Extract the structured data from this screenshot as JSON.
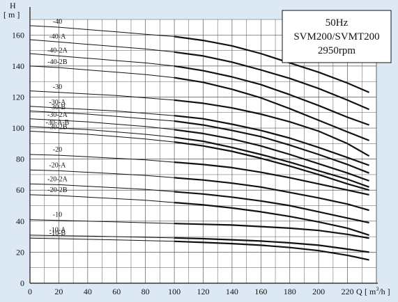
{
  "chart_data": {
    "type": "line",
    "ylabel": "H",
    "yunit": "[ m ]",
    "xlabel": "Q",
    "xunit_parts": [
      "[ m",
      "3",
      "/h ]"
    ],
    "xlim": [
      0,
      240
    ],
    "ylim": [
      0,
      170
    ],
    "xticks": [
      0,
      20,
      40,
      60,
      80,
      100,
      120,
      140,
      160,
      180,
      200,
      220
    ],
    "yticks": [
      0,
      20,
      40,
      60,
      80,
      100,
      120,
      140,
      160
    ],
    "grid": true,
    "info": [
      "50Hz",
      "SVM200/SVMT200",
      "2950rpm"
    ],
    "series": [
      {
        "name": "-40",
        "x": [
          0,
          20,
          40,
          60,
          80,
          100,
          120,
          140,
          160,
          180,
          200,
          220,
          235
        ],
        "y": [
          166,
          165,
          163.5,
          162,
          160.5,
          159,
          156.5,
          153,
          148,
          142,
          136,
          129,
          123
        ]
      },
      {
        "name": "-40-A",
        "x": [
          0,
          20,
          40,
          60,
          80,
          100,
          120,
          140,
          160,
          180,
          200,
          220,
          235
        ],
        "y": [
          157,
          155.5,
          154,
          152.5,
          151,
          149,
          146.5,
          142.5,
          137.5,
          132,
          125.5,
          118,
          112
        ]
      },
      {
        "name": "-40-2A",
        "x": [
          0,
          20,
          40,
          60,
          80,
          100,
          120,
          140,
          160,
          180,
          200,
          220,
          235
        ],
        "y": [
          148,
          146.5,
          145,
          143.5,
          142,
          140,
          137,
          133,
          128,
          121.5,
          114.5,
          107,
          102
        ]
      },
      {
        "name": "-40-2B",
        "x": [
          0,
          20,
          40,
          60,
          80,
          100,
          120,
          140,
          160,
          180,
          200,
          220,
          235
        ],
        "y": [
          140,
          139,
          137.5,
          136,
          134.5,
          132.5,
          129.5,
          125,
          119.5,
          112.5,
          105,
          97.5,
          92
        ]
      },
      {
        "name": "-30",
        "x": [
          0,
          20,
          40,
          60,
          80,
          100,
          120,
          140,
          160,
          180,
          200,
          220,
          235
        ],
        "y": [
          124,
          123,
          122,
          121,
          119.5,
          118,
          116,
          113,
          109,
          104,
          98,
          90,
          82
        ]
      },
      {
        "name": "-30-A",
        "x": [
          0,
          20,
          40,
          60,
          80,
          100,
          120,
          140,
          160,
          180,
          200,
          220,
          235
        ],
        "y": [
          114,
          113,
          112,
          111,
          109.5,
          108,
          106,
          102.5,
          98.5,
          93.5,
          87.5,
          81,
          76
        ]
      },
      {
        "name": "-30-B",
        "x": [
          0,
          20,
          40,
          60,
          80,
          100,
          120,
          140,
          160,
          180,
          200,
          220,
          235
        ],
        "y": [
          111,
          110,
          109,
          107.5,
          106,
          104.5,
          102,
          98.5,
          94.5,
          89,
          83,
          76.5,
          71
        ]
      },
      {
        "name": "-30-2A",
        "x": [
          0,
          20,
          40,
          60,
          80,
          100,
          120,
          140,
          160,
          180,
          200,
          220,
          235
        ],
        "y": [
          106,
          105,
          104,
          102.5,
          101,
          99,
          96.5,
          93,
          88.5,
          83,
          77,
          71,
          66
        ]
      },
      {
        "name": "-30-A-B",
        "x": [
          0,
          20,
          40,
          60,
          80,
          100,
          120,
          140,
          160,
          180,
          200,
          220,
          235
        ],
        "y": [
          101,
          100,
          99,
          97.5,
          96,
          94,
          91.5,
          87.5,
          83,
          78,
          72.5,
          67,
          62
        ]
      },
      {
        "name": "-30-2B",
        "x": [
          0,
          20,
          40,
          60,
          80,
          100,
          120,
          140,
          160,
          180,
          200,
          220,
          235
        ],
        "y": [
          98,
          97,
          96,
          94.5,
          93,
          91,
          88.5,
          85,
          80.5,
          75.5,
          70,
          64,
          60
        ]
      },
      {
        "name": "-20",
        "x": [
          0,
          20,
          40,
          60,
          80,
          100,
          120,
          140,
          160,
          180,
          200,
          220,
          235
        ],
        "y": [
          83,
          82.5,
          81.5,
          80.5,
          79.5,
          78,
          76.5,
          74.5,
          71.5,
          68,
          64,
          60,
          57
        ]
      },
      {
        "name": "-20-A",
        "x": [
          0,
          20,
          40,
          60,
          80,
          100,
          120,
          140,
          160,
          180,
          200,
          220,
          235
        ],
        "y": [
          73,
          72.5,
          71.5,
          70.5,
          69.5,
          68,
          66.5,
          64.5,
          62,
          58.5,
          55,
          51,
          47
        ]
      },
      {
        "name": "-20-2A",
        "x": [
          0,
          20,
          40,
          60,
          80,
          100,
          120,
          140,
          160,
          180,
          200,
          220,
          235
        ],
        "y": [
          64,
          63.5,
          62.5,
          61.5,
          60.5,
          59,
          57.5,
          55.5,
          53,
          50,
          46,
          42,
          39
        ]
      },
      {
        "name": "-20-2B",
        "x": [
          0,
          20,
          40,
          60,
          80,
          100,
          120,
          140,
          160,
          180,
          200,
          220,
          235
        ],
        "y": [
          57,
          56.5,
          55.5,
          54.5,
          53.5,
          52,
          50.5,
          48.5,
          46,
          43,
          39.5,
          35.5,
          31
        ]
      },
      {
        "name": "-10",
        "x": [
          0,
          20,
          40,
          60,
          80,
          100,
          120,
          140,
          160,
          180,
          200,
          220,
          235
        ],
        "y": [
          41,
          40.5,
          40,
          39.5,
          39,
          38.5,
          38,
          37.5,
          36.5,
          35.5,
          34,
          31.5,
          29
        ]
      },
      {
        "name": "-10-A",
        "x": [
          0,
          20,
          40,
          60,
          80,
          100,
          120,
          140,
          160,
          180,
          200,
          220,
          235
        ],
        "y": [
          31,
          30.7,
          30.4,
          30,
          29.6,
          29.2,
          28.7,
          28,
          27.2,
          26,
          24.5,
          22,
          20
        ]
      },
      {
        "name": "-10-B",
        "x": [
          0,
          20,
          40,
          60,
          80,
          100,
          120,
          140,
          160,
          180,
          200,
          220,
          235
        ],
        "y": [
          29,
          28.7,
          28.3,
          27.9,
          27.5,
          27,
          26.3,
          25.5,
          24.5,
          23,
          21,
          18,
          15
        ]
      }
    ]
  }
}
